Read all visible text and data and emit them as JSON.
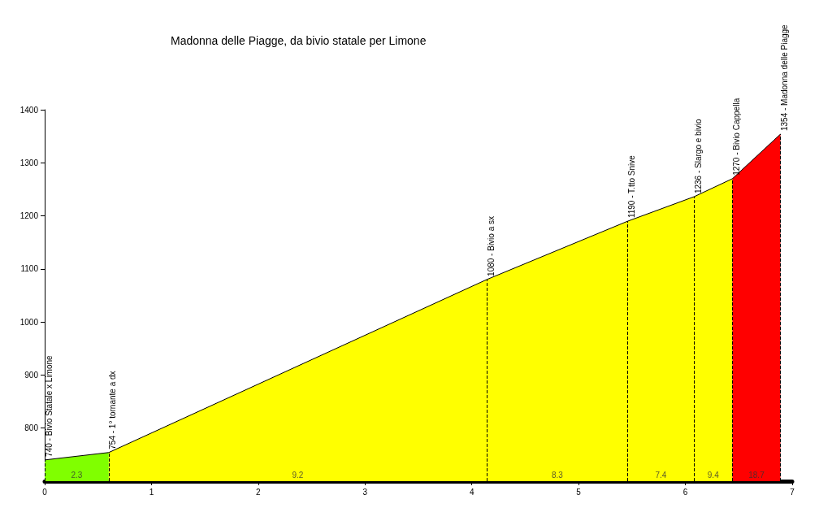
{
  "chart_data": {
    "type": "area",
    "title": "Madonna delle Piagge, da bivio statale per Limone",
    "xlim": [
      0,
      7
    ],
    "xticks": [
      0,
      1,
      2,
      3,
      4,
      5,
      6,
      7
    ],
    "ylim": [
      700,
      1400
    ],
    "yticks": [
      800,
      900,
      1000,
      1100,
      1200,
      1300,
      1400
    ],
    "grid": false,
    "marker": "none",
    "series": [
      {
        "color": "#80ff00",
        "x": [
          0,
          0.6
        ],
        "values": [
          740,
          754
        ],
        "value_labels": [
          "740 - Bivio Statale x Limone",
          "754 - 1° tornante a dx"
        ]
      },
      {
        "color": "#ffff00",
        "x": [
          0.6,
          4.14,
          5.46,
          6.08,
          6.44
        ],
        "values": [
          754,
          1080,
          1190,
          1236,
          1270
        ],
        "value_labels": [
          null,
          "1080 - Bivio a sx",
          "1190 - T.tto Snive",
          "1236 - Slargo e bivio",
          "1270 - Bivio Cappella"
        ]
      },
      {
        "color": "#ff0000",
        "x": [
          6.44,
          6.89
        ],
        "values": [
          1270,
          1354
        ],
        "value_labels": [
          null,
          "1354 - Madonna delle Piagge"
        ]
      }
    ],
    "annotations": [
      "2.3",
      "9.2",
      "8.3",
      "7.4",
      "9.4",
      "18.7"
    ]
  }
}
